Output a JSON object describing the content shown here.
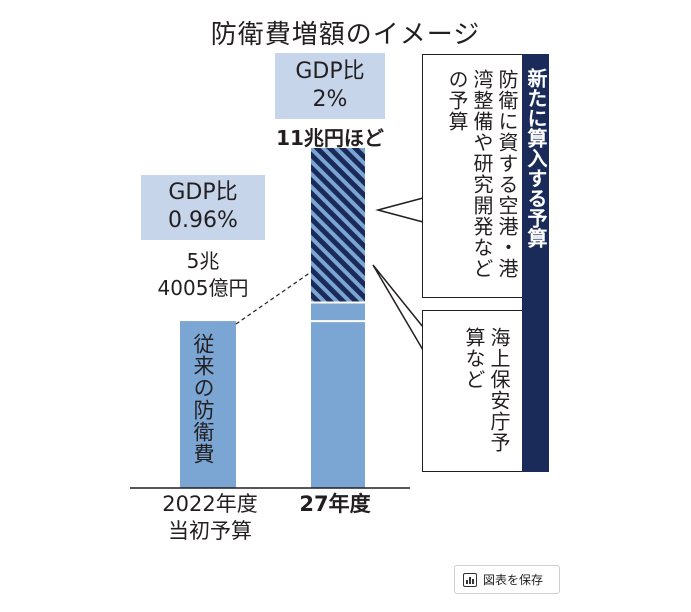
{
  "title": "防衛費増額のイメージ",
  "chart_data": {
    "type": "bar",
    "categories": [
      "2022年度\n当初予算",
      "27年度"
    ],
    "series": [
      {
        "name": "従来の防衛費",
        "values": [
          5.4005,
          5.4005
        ]
      },
      {
        "name": "海上保安庁予算など",
        "values": [
          0,
          0.6
        ]
      },
      {
        "name": "防衛に資する空港・港湾整備や研究開発などの予算",
        "values": [
          0,
          5.0
        ]
      }
    ],
    "totals": [
      5.4005,
      11.0
    ],
    "ylim": [
      0,
      12
    ]
  },
  "bar_2022": {
    "gdp_label": "GDP比",
    "gdp_value": "0.96%",
    "amount_line1": "5兆",
    "amount_line2": "4005億円",
    "inner_label": "従来の防衛費",
    "x_label_line1": "2022年度",
    "x_label_line2": "当初予算"
  },
  "bar_2027": {
    "gdp_label": "GDP比",
    "gdp_value": "2%",
    "amount": "11兆円ほど",
    "x_label": "27年度"
  },
  "callouts": {
    "new_budget_heading": "新たに算入する予算",
    "research_text": "防衛に資する空港・港湾整備や研究開発などの予算",
    "coast_guard_text": "海上保安庁予算など"
  },
  "save_button": {
    "label": "図表を保存",
    "icon": "bar-chart-icon"
  },
  "colors": {
    "bar": "#7ba5d3",
    "stripe_dark": "#1a2b5a",
    "gdp_box": "#c6d5ea",
    "navy_band": "#1a2b5a"
  }
}
